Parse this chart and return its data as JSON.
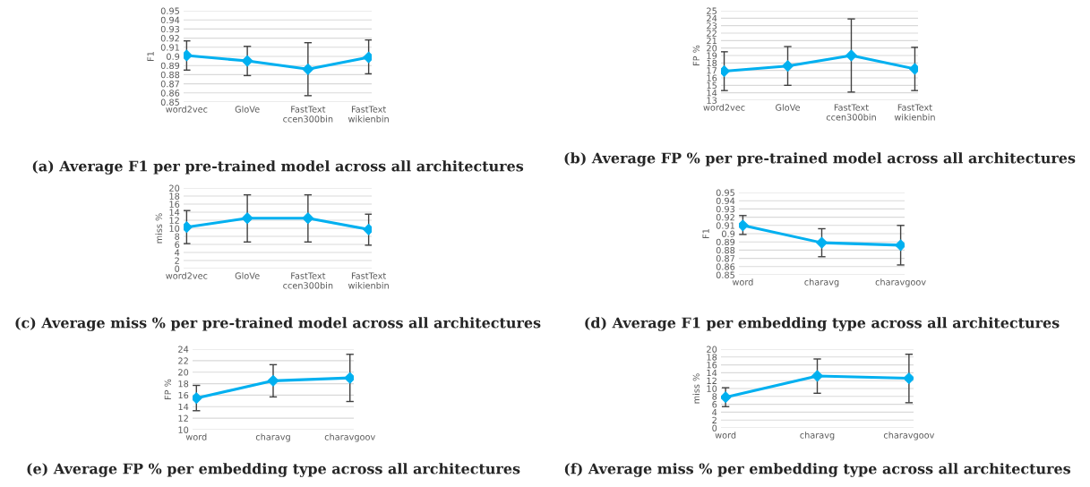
{
  "chart_data": [
    {
      "type": "line",
      "title": "(a) Average F1 per pre-trained model across all architectures",
      "ylabel": "F1",
      "categories": [
        "word2vec",
        "GloVe",
        "FastText\nccen300bin",
        "FastText\nwikienbin"
      ],
      "series": [
        {
          "color": "#00b0f0",
          "values": [
            0.901,
            0.895,
            0.886,
            0.899
          ],
          "errors": [
            [
              0.885,
              0.917
            ],
            [
              0.879,
              0.911
            ],
            [
              0.857,
              0.915
            ],
            [
              0.881,
              0.918
            ]
          ]
        }
      ],
      "ylim": [
        0.85,
        0.95
      ],
      "yticks": [
        0.85,
        0.86,
        0.87,
        0.88,
        0.89,
        0.9,
        0.91,
        0.92,
        0.93,
        0.94,
        0.95
      ],
      "grid": "y",
      "marker": "diamond",
      "line_style": "solid",
      "legend": false
    },
    {
      "type": "line",
      "title": "(b) Average FP % per pre-trained model across all architectures",
      "ylabel": "FP %",
      "categories": [
        "word2vec",
        "GloVe",
        "FastText\nccen300bin",
        "FastText\nwikienbin"
      ],
      "series": [
        {
          "color": "#00b0f0",
          "values": [
            16.9,
            17.6,
            19.0,
            17.2
          ],
          "errors": [
            [
              14.3,
              19.5
            ],
            [
              15.0,
              20.2
            ],
            [
              14.1,
              23.9
            ],
            [
              14.3,
              20.1
            ]
          ]
        }
      ],
      "ylim": [
        13,
        25
      ],
      "yticks": [
        13,
        14,
        15,
        16,
        17,
        18,
        19,
        20,
        21,
        22,
        23,
        24,
        25
      ],
      "grid": "y",
      "marker": "diamond",
      "line_style": "solid",
      "legend": false
    },
    {
      "type": "line",
      "title": "(c) Average miss % per pre-trained model across all architectures",
      "ylabel": "miss %",
      "categories": [
        "word2vec",
        "GloVe",
        "FastText\nccen300bin",
        "FastText\nwikienbin"
      ],
      "series": [
        {
          "color": "#00b0f0",
          "values": [
            10.3,
            12.5,
            12.5,
            9.7
          ],
          "errors": [
            [
              6.2,
              14.4
            ],
            [
              6.6,
              18.3
            ],
            [
              6.6,
              18.3
            ],
            [
              5.8,
              13.5
            ]
          ]
        }
      ],
      "ylim": [
        0,
        20
      ],
      "yticks": [
        0,
        2,
        4,
        6,
        8,
        10,
        12,
        14,
        16,
        18,
        20
      ],
      "grid": "y",
      "marker": "diamond",
      "line_style": "solid",
      "legend": false
    },
    {
      "type": "line",
      "title": "(d) Average F1 per embedding type across all architectures",
      "ylabel": "F1",
      "categories": [
        "word",
        "charavg",
        "charavgoov"
      ],
      "series": [
        {
          "color": "#00b0f0",
          "values": [
            0.91,
            0.889,
            0.886
          ],
          "errors": [
            [
              0.899,
              0.922
            ],
            [
              0.872,
              0.906
            ],
            [
              0.862,
              0.91
            ]
          ]
        }
      ],
      "ylim": [
        0.85,
        0.95
      ],
      "yticks": [
        0.85,
        0.86,
        0.87,
        0.88,
        0.89,
        0.9,
        0.91,
        0.92,
        0.93,
        0.94,
        0.95
      ],
      "grid": "y",
      "marker": "diamond",
      "line_style": "solid",
      "legend": false
    },
    {
      "type": "line",
      "title": "(e) Average FP % per embedding type across all architectures",
      "ylabel": "FP %",
      "categories": [
        "word",
        "charavg",
        "charavgoov"
      ],
      "series": [
        {
          "color": "#00b0f0",
          "values": [
            15.5,
            18.5,
            19.0
          ],
          "errors": [
            [
              13.3,
              17.7
            ],
            [
              15.7,
              21.3
            ],
            [
              14.9,
              23.1
            ]
          ]
        }
      ],
      "ylim": [
        10,
        24
      ],
      "yticks": [
        10,
        12,
        14,
        16,
        18,
        20,
        22,
        24
      ],
      "grid": "y",
      "marker": "diamond",
      "line_style": "solid",
      "legend": false
    },
    {
      "type": "line",
      "title": "(f) Average miss % per embedding type across all architectures",
      "ylabel": "miss %",
      "categories": [
        "word",
        "charavg",
        "charavgoov"
      ],
      "series": [
        {
          "color": "#00b0f0",
          "values": [
            7.8,
            13.2,
            12.6
          ],
          "errors": [
            [
              5.4,
              10.2
            ],
            [
              8.8,
              17.5
            ],
            [
              6.4,
              18.7
            ]
          ]
        }
      ],
      "ylim": [
        0,
        20
      ],
      "yticks": [
        0,
        2,
        4,
        6,
        8,
        10,
        12,
        14,
        16,
        18,
        20
      ],
      "grid": "y",
      "marker": "diamond",
      "line_style": "solid",
      "legend": false
    }
  ]
}
